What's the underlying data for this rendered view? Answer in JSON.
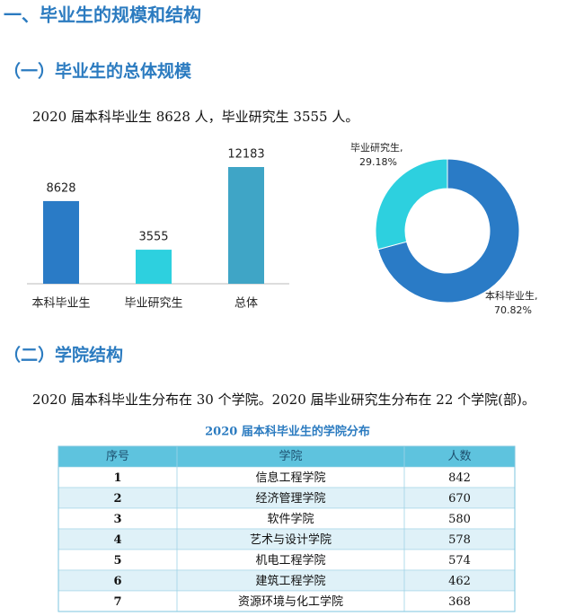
{
  "heading": "一、毕业生的规模和结构",
  "section1": {
    "title": "（一）毕业生的总体规模",
    "text": "2020 届本科毕业生 8628 人，毕业研究生 3555 人。"
  },
  "chart_data": [
    {
      "type": "bar",
      "categories": [
        "本科毕业生",
        "毕业研究生",
        "总体"
      ],
      "values": [
        8628,
        3555,
        12183
      ],
      "colors": [
        "#2a7bc6",
        "#2dd0df",
        "#3fa5c6"
      ]
    },
    {
      "type": "donut",
      "categories": [
        "本科毕业生,",
        "毕业研究生,"
      ],
      "values": [
        70.82,
        29.18
      ],
      "value_labels": [
        "70.82%",
        "29.18%"
      ],
      "colors": [
        "#2a7bc6",
        "#2dd0df"
      ]
    }
  ],
  "section2": {
    "title": "（二）学院结构",
    "text": "2020 届本科毕业生分布在 30 个学院。2020 届毕业研究生分布在 22 个学院(部)。"
  },
  "table": {
    "title": "2020 届本科毕业生的学院分布",
    "header": [
      "序号",
      "学院",
      "人数"
    ],
    "rows": [
      [
        "1",
        "信息工程学院",
        "842"
      ],
      [
        "2",
        "经济管理学院",
        "670"
      ],
      [
        "3",
        "软件学院",
        "580"
      ],
      [
        "4",
        "艺术与设计学院",
        "578"
      ],
      [
        "5",
        "机电工程学院",
        "574"
      ],
      [
        "6",
        "建筑工程学院",
        "462"
      ],
      [
        "7",
        "资源环境与化工学院",
        "368"
      ]
    ]
  }
}
